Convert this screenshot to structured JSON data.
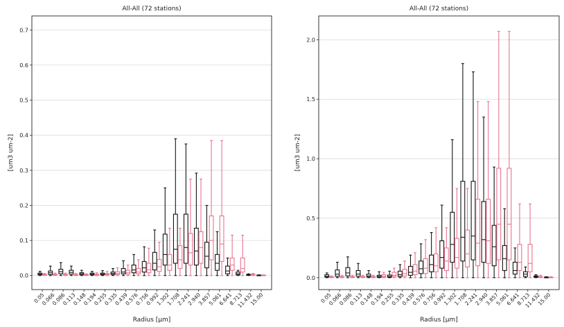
{
  "chart_data": [
    {
      "type": "box",
      "title": "All-All (72 stations)",
      "xlabel": "Radius [μm]",
      "ylabel": "[um3 um-2]",
      "ylim": [
        -0.04,
        0.74
      ],
      "yticks": [
        "0.0",
        "0.1",
        "0.2",
        "0.3",
        "0.4",
        "0.5",
        "0.6",
        "0.7"
      ],
      "ytick_values": [
        0,
        0.1,
        0.2,
        0.3,
        0.4,
        0.5,
        0.6,
        0.7
      ],
      "grid": true,
      "colors": {
        "black": "#111111",
        "pink": "#e8738f"
      },
      "categories": [
        "0.05",
        "0.066",
        "0.086",
        "0.113",
        "0.148",
        "0.194",
        "0.255",
        "0.335",
        "0.439",
        "0.576",
        "0.756",
        "0.992",
        "1.302",
        "1.708",
        "2.241",
        "2.940",
        "3.857",
        "5.061",
        "6.641",
        "8.713",
        "11.432",
        "15.00"
      ],
      "series": [
        {
          "color": "black",
          "boxes": [
            [
              0,
              0.002,
              0.004,
              0.007,
              0.012
            ],
            [
              0,
              0.003,
              0.008,
              0.013,
              0.027
            ],
            [
              0,
              0.005,
              0.011,
              0.018,
              0.037
            ],
            [
              0,
              0.004,
              0.009,
              0.015,
              0.027
            ],
            [
              0,
              0.002,
              0.005,
              0.008,
              0.015
            ],
            [
              0,
              0.002,
              0.004,
              0.007,
              0.012
            ],
            [
              0,
              0.002,
              0.004,
              0.007,
              0.014
            ],
            [
              0,
              0.003,
              0.006,
              0.01,
              0.02
            ],
            [
              0,
              0.005,
              0.01,
              0.02,
              0.042
            ],
            [
              0,
              0.008,
              0.016,
              0.03,
              0.06
            ],
            [
              0,
              0.01,
              0.022,
              0.04,
              0.082
            ],
            [
              0,
              0.016,
              0.035,
              0.066,
              0.13
            ],
            [
              0,
              0.03,
              0.06,
              0.118,
              0.25
            ],
            [
              0,
              0.035,
              0.075,
              0.175,
              0.39
            ],
            [
              0,
              0.035,
              0.08,
              0.175,
              0.375
            ],
            [
              0,
              0.03,
              0.07,
              0.135,
              0.292
            ],
            [
              0,
              0.022,
              0.055,
              0.095,
              0.2
            ],
            [
              0,
              0.015,
              0.035,
              0.06,
              0.125
            ],
            [
              0,
              0.005,
              0.013,
              0.027,
              0.05
            ],
            [
              0,
              0.002,
              0.005,
              0.01,
              0.015
            ],
            [
              0,
              0.001,
              0.002,
              0.003,
              0.005
            ],
            [
              0,
              0.0005,
              0.001,
              0.0015,
              0.002
            ]
          ]
        },
        {
          "color": "pink",
          "boxes": [
            [
              0,
              0.001,
              0.002,
              0.004,
              0.006
            ],
            [
              0,
              0.001,
              0.002,
              0.004,
              0.007
            ],
            [
              0,
              0.001,
              0.002,
              0.004,
              0.007
            ],
            [
              0,
              0.001,
              0.002,
              0.003,
              0.006
            ],
            [
              0,
              0.001,
              0.002,
              0.003,
              0.005
            ],
            [
              0,
              0.001,
              0.002,
              0.004,
              0.008
            ],
            [
              0,
              0.002,
              0.004,
              0.006,
              0.012
            ],
            [
              0,
              0.003,
              0.006,
              0.011,
              0.022
            ],
            [
              0,
              0.004,
              0.008,
              0.015,
              0.03
            ],
            [
              0,
              0.005,
              0.01,
              0.02,
              0.045
            ],
            [
              0,
              0.008,
              0.016,
              0.035,
              0.078
            ],
            [
              0,
              0.012,
              0.025,
              0.046,
              0.095
            ],
            [
              0,
              0.015,
              0.03,
              0.06,
              0.135
            ],
            [
              0,
              0.02,
              0.045,
              0.085,
              0.135
            ],
            [
              0,
              0.03,
              0.065,
              0.12,
              0.275
            ],
            [
              0,
              0.035,
              0.08,
              0.125,
              0.275
            ],
            [
              0,
              0.045,
              0.1,
              0.17,
              0.385
            ],
            [
              0,
              0.04,
              0.09,
              0.17,
              0.385
            ],
            [
              0,
              0.015,
              0.03,
              0.05,
              0.115
            ],
            [
              0,
              0.01,
              0.02,
              0.05,
              0.115
            ],
            [
              0,
              0.001,
              0.002,
              0.004,
              0.006
            ],
            [
              0,
              0.0005,
              0.001,
              0.0015,
              0.002
            ]
          ]
        }
      ]
    },
    {
      "type": "box",
      "title": "All-All (72 stations)",
      "xlabel": "Radius [μm]",
      "ylabel": "[um3 um-2]",
      "ylim": [
        -0.1,
        2.2
      ],
      "yticks": [
        "0.0",
        "0.5",
        "1.0",
        "1.5",
        "2.0"
      ],
      "ytick_values": [
        0,
        0.5,
        1.0,
        1.5,
        2.0
      ],
      "grid": true,
      "colors": {
        "black": "#111111",
        "pink": "#e8738f"
      },
      "categories": [
        "0.05",
        "0.066",
        "0.086",
        "0.113",
        "0.148",
        "0.194",
        "0.255",
        "0.335",
        "0.439",
        "0.576",
        "0.756",
        "0.992",
        "1.302",
        "1.708",
        "2.241",
        "2.940",
        "3.857",
        "5.061",
        "6.641",
        "8.713",
        "11.432",
        "15.00"
      ],
      "series": [
        {
          "color": "black",
          "boxes": [
            [
              0,
              0.005,
              0.012,
              0.025,
              0.04
            ],
            [
              0,
              0.012,
              0.03,
              0.065,
              0.13
            ],
            [
              0,
              0.015,
              0.04,
              0.085,
              0.175
            ],
            [
              0,
              0.012,
              0.03,
              0.06,
              0.12
            ],
            [
              0,
              0.006,
              0.015,
              0.03,
              0.06
            ],
            [
              0,
              0.004,
              0.01,
              0.02,
              0.05
            ],
            [
              0,
              0.004,
              0.01,
              0.022,
              0.055
            ],
            [
              0,
              0.01,
              0.025,
              0.055,
              0.11
            ],
            [
              0,
              0.02,
              0.045,
              0.095,
              0.19
            ],
            [
              0,
              0.035,
              0.075,
              0.14,
              0.285
            ],
            [
              0,
              0.05,
              0.11,
              0.19,
              0.38
            ],
            [
              0,
              0.08,
              0.17,
              0.31,
              0.61
            ],
            [
              0,
              0.13,
              0.28,
              0.55,
              1.16
            ],
            [
              0,
              0.14,
              0.34,
              0.81,
              1.8
            ],
            [
              0,
              0.15,
              0.35,
              0.81,
              1.73
            ],
            [
              0,
              0.13,
              0.32,
              0.64,
              1.35
            ],
            [
              0,
              0.1,
              0.26,
              0.44,
              0.93
            ],
            [
              0,
              0.06,
              0.16,
              0.27,
              0.58
            ],
            [
              0,
              0.03,
              0.06,
              0.13,
              0.25
            ],
            [
              0,
              0.01,
              0.03,
              0.05,
              0.09
            ],
            [
              0,
              0.004,
              0.01,
              0.015,
              0.025
            ],
            [
              0,
              0.001,
              0.003,
              0.005,
              0.008
            ]
          ]
        },
        {
          "color": "pink",
          "boxes": [
            [
              0,
              0.002,
              0.004,
              0.008,
              0.015
            ],
            [
              0,
              0.003,
              0.006,
              0.01,
              0.02
            ],
            [
              0,
              0.003,
              0.006,
              0.01,
              0.02
            ],
            [
              0,
              0.003,
              0.006,
              0.01,
              0.02
            ],
            [
              0,
              0.003,
              0.006,
              0.01,
              0.02
            ],
            [
              0,
              0.005,
              0.012,
              0.025,
              0.045
            ],
            [
              0,
              0.01,
              0.02,
              0.045,
              0.08
            ],
            [
              0,
              0.015,
              0.035,
              0.07,
              0.14
            ],
            [
              0,
              0.025,
              0.055,
              0.11,
              0.21
            ],
            [
              0,
              0.035,
              0.08,
              0.16,
              0.32
            ],
            [
              0,
              0.05,
              0.1,
              0.2,
              0.42
            ],
            [
              0,
              0.06,
              0.14,
              0.25,
              0.42
            ],
            [
              0,
              0.08,
              0.17,
              0.33,
              0.75
            ],
            [
              0,
              0.09,
              0.2,
              0.4,
              0.75
            ],
            [
              0,
              0.1,
              0.29,
              0.66,
              1.48
            ],
            [
              0,
              0.12,
              0.31,
              0.66,
              1.48
            ],
            [
              0,
              0.15,
              0.45,
              0.92,
              2.07
            ],
            [
              0,
              0.15,
              0.45,
              0.92,
              2.07
            ],
            [
              0,
              0.06,
              0.13,
              0.28,
              0.62
            ],
            [
              0,
              0.05,
              0.12,
              0.28,
              0.62
            ],
            [
              0,
              0.003,
              0.006,
              0.01,
              0.02
            ],
            [
              0,
              0.001,
              0.003,
              0.005,
              0.008
            ]
          ]
        }
      ]
    }
  ]
}
